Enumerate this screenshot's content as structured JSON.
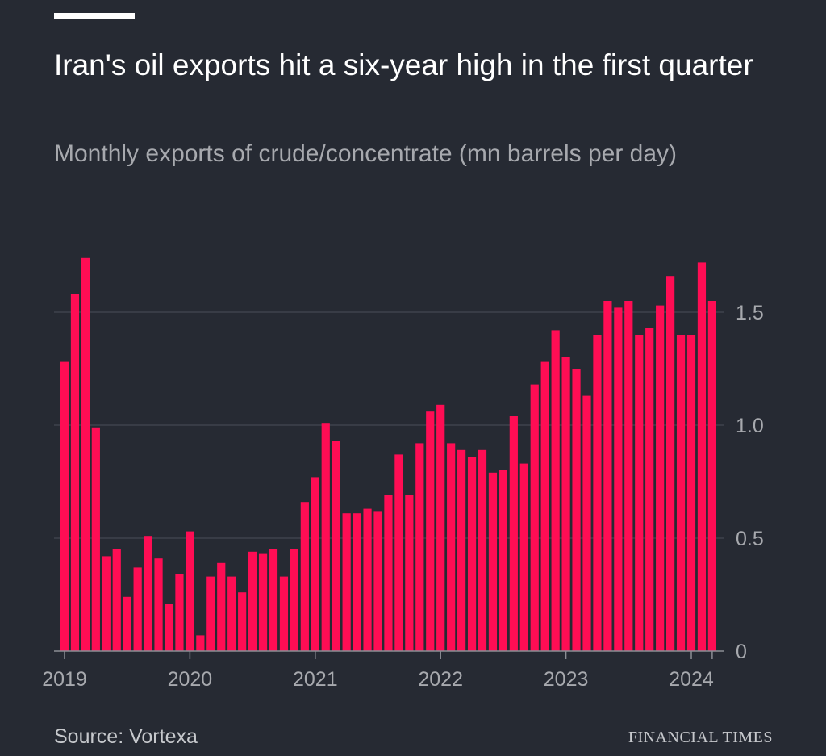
{
  "header": {
    "title": "Iran's oil exports hit a six-year high in the first quarter",
    "subtitle": "Monthly exports of crude/concentrate (mn barrels per day)"
  },
  "footer": {
    "source": "Source: Vortexa",
    "brand": "FINANCIAL TIMES"
  },
  "colors": {
    "background": "#262a33",
    "bar": "#ff0d54",
    "grid": "#4b4f58",
    "axis": "#8b8e95",
    "text_muted": "#a7a9ae"
  },
  "chart_data": {
    "type": "bar",
    "title": "Iran's oil exports hit a six-year high in the first quarter",
    "subtitle": "Monthly exports of crude/concentrate (mn barrels per day)",
    "xlabel": "",
    "ylabel": "",
    "ylim": [
      0,
      1.75
    ],
    "y_ticks": [
      0,
      0.5,
      1.0,
      1.5
    ],
    "y_tick_labels": [
      "0",
      "0.5",
      "1.0",
      "1.5"
    ],
    "y_axis_side": "right",
    "grid": true,
    "x_tick_labels": [
      "2019",
      "2020",
      "2021",
      "2022",
      "2023",
      "2024"
    ],
    "x_tick_positions": [
      0,
      12,
      24,
      36,
      48,
      60
    ],
    "categories": [
      "2019-01",
      "2019-02",
      "2019-03",
      "2019-04",
      "2019-05",
      "2019-06",
      "2019-07",
      "2019-08",
      "2019-09",
      "2019-10",
      "2019-11",
      "2019-12",
      "2020-01",
      "2020-02",
      "2020-03",
      "2020-04",
      "2020-05",
      "2020-06",
      "2020-07",
      "2020-08",
      "2020-09",
      "2020-10",
      "2020-11",
      "2020-12",
      "2021-01",
      "2021-02",
      "2021-03",
      "2021-04",
      "2021-05",
      "2021-06",
      "2021-07",
      "2021-08",
      "2021-09",
      "2021-10",
      "2021-11",
      "2021-12",
      "2022-01",
      "2022-02",
      "2022-03",
      "2022-04",
      "2022-05",
      "2022-06",
      "2022-07",
      "2022-08",
      "2022-09",
      "2022-10",
      "2022-11",
      "2022-12",
      "2023-01",
      "2023-02",
      "2023-03",
      "2023-04",
      "2023-05",
      "2023-06",
      "2023-07",
      "2023-08",
      "2023-09",
      "2023-10",
      "2023-11",
      "2023-12",
      "2024-01",
      "2024-02",
      "2024-03"
    ],
    "values": [
      1.28,
      1.58,
      1.74,
      0.99,
      0.42,
      0.45,
      0.24,
      0.37,
      0.51,
      0.41,
      0.21,
      0.34,
      0.53,
      0.07,
      0.33,
      0.39,
      0.33,
      0.26,
      0.44,
      0.43,
      0.45,
      0.33,
      0.45,
      0.66,
      0.77,
      1.01,
      0.93,
      0.61,
      0.61,
      0.63,
      0.62,
      0.69,
      0.87,
      0.69,
      0.92,
      1.06,
      1.09,
      0.92,
      0.89,
      0.86,
      0.89,
      0.79,
      0.8,
      1.04,
      0.83,
      1.18,
      1.28,
      1.42,
      1.3,
      1.25,
      1.13,
      1.4,
      1.55,
      1.52,
      1.55,
      1.4,
      1.43,
      1.53,
      1.66,
      1.4,
      1.4,
      1.72,
      1.55
    ]
  }
}
